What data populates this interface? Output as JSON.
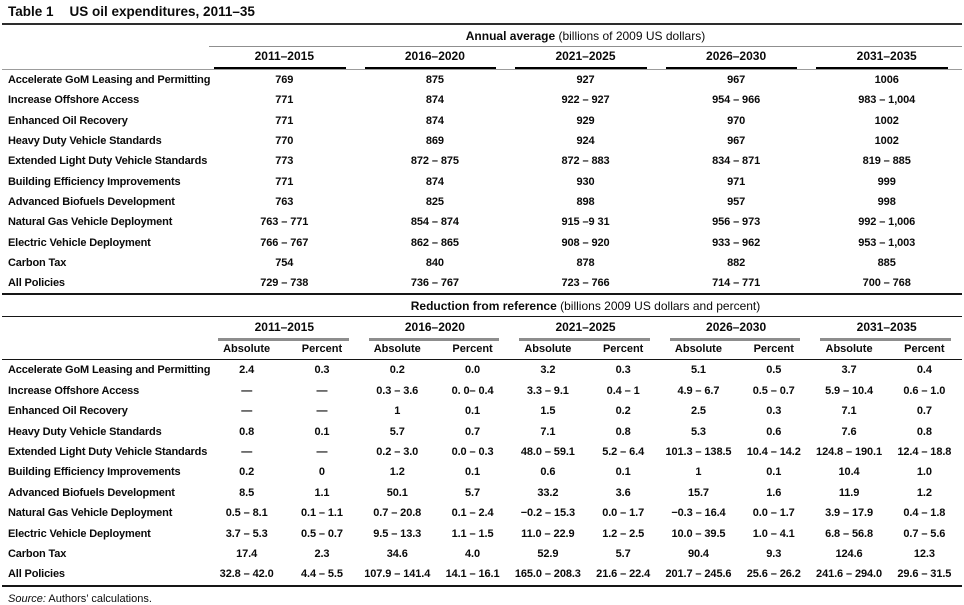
{
  "title": {
    "label": "Table 1",
    "text": "US oil expenditures, 2011–35"
  },
  "periods": [
    "2011–2015",
    "2016–2020",
    "2021–2025",
    "2026–2030",
    "2031–2035"
  ],
  "annual": {
    "header_bold": "Annual average",
    "header_rest": " (billions of 2009 US dollars)",
    "rows": [
      {
        "label": "Accelerate GoM Leasing and Permitting",
        "values": [
          "769",
          "875",
          "927",
          "967",
          "1006"
        ]
      },
      {
        "label": "Increase Offshore Access",
        "values": [
          "771",
          "874",
          "922 – 927",
          "954 – 966",
          "983 – 1,004"
        ]
      },
      {
        "label": "Enhanced Oil Recovery",
        "values": [
          "771",
          "874",
          "929",
          "970",
          "1002"
        ]
      },
      {
        "label": "Heavy Duty Vehicle Standards",
        "values": [
          "770",
          "869",
          "924",
          "967",
          "1002"
        ]
      },
      {
        "label": "Extended Light Duty Vehicle Standards",
        "values": [
          "773",
          "872 – 875",
          "872 – 883",
          "834 – 871",
          "819 – 885"
        ]
      },
      {
        "label": "Building Efficiency Improvements",
        "values": [
          "771",
          "874",
          "930",
          "971",
          "999"
        ]
      },
      {
        "label": "Advanced Biofuels Development",
        "values": [
          "763",
          "825",
          "898",
          "957",
          "998"
        ]
      },
      {
        "label": "Natural Gas Vehicle Deployment",
        "values": [
          "763 – 771",
          "854 – 874",
          "915 –9 31",
          "956 – 973",
          "992 – 1,006"
        ]
      },
      {
        "label": "Electric Vehicle Deployment",
        "values": [
          "766 – 767",
          "862 – 865",
          "908 – 920",
          "933 – 962",
          "953 – 1,003"
        ]
      },
      {
        "label": "Carbon Tax",
        "values": [
          "754",
          "840",
          "878",
          "882",
          "885"
        ]
      },
      {
        "label": "All Policies",
        "values": [
          "729 – 738",
          "736 – 767",
          "723 – 766",
          "714 – 771",
          "700 – 768"
        ]
      }
    ]
  },
  "reduction": {
    "header_bold": "Reduction from reference",
    "header_rest": " (billions 2009 US dollars and percent)",
    "subheader_cells": [
      "Absolute",
      "Percent",
      "Absolute",
      "Percent",
      "Absolute",
      "Percent",
      "Absolute",
      "Percent",
      "Absolute",
      "Percent"
    ],
    "rows": [
      {
        "label": "Accelerate GoM Leasing and Permitting",
        "values": [
          "2.4",
          "0.3",
          "0.2",
          "0.0",
          "3.2",
          "0.3",
          "5.1",
          "0.5",
          "3.7",
          "0.4"
        ]
      },
      {
        "label": "Increase Offshore Access",
        "values": [
          "—",
          "—",
          "0.3 – 3.6",
          "0. 0– 0.4",
          "3.3 – 9.1",
          "0.4 – 1",
          "4.9 – 6.7",
          "0.5 – 0.7",
          "5.9 – 10.4",
          "0.6 – 1.0"
        ]
      },
      {
        "label": "Enhanced Oil Recovery",
        "values": [
          "—",
          "—",
          "1",
          "0.1",
          "1.5",
          "0.2",
          "2.5",
          "0.3",
          "7.1",
          "0.7"
        ]
      },
      {
        "label": "Heavy Duty Vehicle Standards",
        "values": [
          "0.8",
          "0.1",
          "5.7",
          "0.7",
          "7.1",
          "0.8",
          "5.3",
          "0.6",
          "7.6",
          "0.8"
        ]
      },
      {
        "label": "Extended Light Duty Vehicle Standards",
        "values": [
          "—",
          "—",
          "0.2 – 3.0",
          "0.0 – 0.3",
          "48.0 – 59.1",
          "5.2 – 6.4",
          "101.3 – 138.5",
          "10.4 – 14.2",
          "124.8 – 190.1",
          "12.4 – 18.8"
        ]
      },
      {
        "label": "Building Efficiency Improvements",
        "values": [
          "0.2",
          "0",
          "1.2",
          "0.1",
          "0.6",
          "0.1",
          "1",
          "0.1",
          "10.4",
          "1.0"
        ]
      },
      {
        "label": "Advanced Biofuels Development",
        "values": [
          "8.5",
          "1.1",
          "50.1",
          "5.7",
          "33.2",
          "3.6",
          "15.7",
          "1.6",
          "11.9",
          "1.2"
        ]
      },
      {
        "label": "Natural Gas Vehicle Deployment",
        "values": [
          "0.5 – 8.1",
          "0.1 – 1.1",
          "0.7 – 20.8",
          "0.1 – 2.4",
          "−0.2 – 15.3",
          "0.0 – 1.7",
          "−0.3 – 16.4",
          "0.0 – 1.7",
          "3.9 – 17.9",
          "0.4 – 1.8"
        ]
      },
      {
        "label": "Electric Vehicle Deployment",
        "values": [
          "3.7 – 5.3",
          "0.5 – 0.7",
          "9.5 – 13.3",
          "1.1 – 1.5",
          "11.0 – 22.9",
          "1.2 – 2.5",
          "10.0 – 39.5",
          "1.0 – 4.1",
          "6.8 – 56.8",
          "0.7 – 5.6"
        ]
      },
      {
        "label": "Carbon Tax",
        "values": [
          "17.4",
          "2.3",
          "34.6",
          "4.0",
          "52.9",
          "5.7",
          "90.4",
          "9.3",
          "124.6",
          "12.3"
        ]
      },
      {
        "label": "All Policies",
        "values": [
          "32.8 – 42.0",
          "4.4 – 5.5",
          "107.9 – 141.4",
          "14.1 – 16.1",
          "165.0 – 208.3",
          "21.6 – 22.4",
          "201.7 – 245.6",
          "25.6 – 26.2",
          "241.6 – 294.0",
          "29.6 – 31.5"
        ]
      }
    ]
  },
  "source": {
    "prefix": "Source:",
    "text": " Authors’ calculations."
  }
}
